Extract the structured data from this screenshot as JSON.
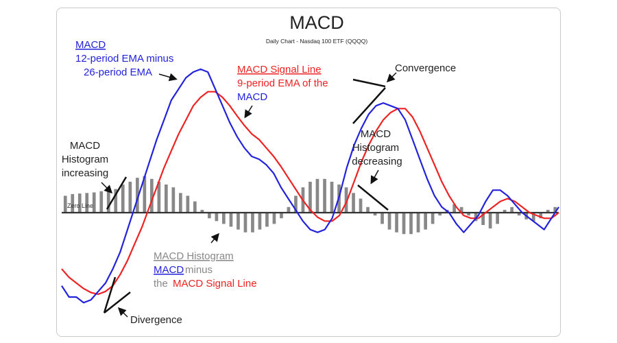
{
  "chart_data": {
    "type": "line",
    "title": "MACD",
    "subtitle": "Daily Chart - Nasdaq 100 ETF (QQQQ)",
    "zero_line_label": "Zero Line",
    "colors": {
      "macd": "#2222dd",
      "signal": "#ee2222",
      "histogram": "#888888",
      "annotation": "#111111"
    },
    "series": [
      {
        "name": "MACD",
        "values": [
          -1.3,
          -1.5,
          -1.5,
          -1.6,
          -1.55,
          -1.4,
          -1.25,
          -1.0,
          -0.7,
          -0.3,
          0.1,
          0.5,
          0.9,
          1.3,
          1.65,
          2.0,
          2.2,
          2.4,
          2.5,
          2.55,
          2.5,
          2.2,
          1.9,
          1.6,
          1.35,
          1.15,
          1.0,
          0.95,
          0.85,
          0.7,
          0.45,
          0.25,
          0.05,
          -0.15,
          -0.3,
          -0.35,
          -0.3,
          -0.1,
          0.3,
          0.8,
          1.2,
          1.5,
          1.75,
          1.9,
          1.95,
          1.9,
          1.85,
          1.65,
          1.3,
          0.95,
          0.6,
          0.3,
          0.1,
          0.0,
          -0.2,
          -0.35,
          -0.2,
          -0.05,
          0.2,
          0.4,
          0.4,
          0.3,
          0.15,
          0.0,
          -0.1,
          -0.2,
          -0.3,
          -0.1,
          0.1
        ]
      },
      {
        "name": "MACD Signal Line",
        "values": [
          -1.0,
          -1.15,
          -1.25,
          -1.35,
          -1.42,
          -1.45,
          -1.4,
          -1.3,
          -1.1,
          -0.85,
          -0.55,
          -0.25,
          0.1,
          0.45,
          0.8,
          1.1,
          1.4,
          1.65,
          1.9,
          2.05,
          2.15,
          2.15,
          2.05,
          1.9,
          1.72,
          1.55,
          1.4,
          1.3,
          1.15,
          1.0,
          0.82,
          0.62,
          0.42,
          0.22,
          0.05,
          -0.08,
          -0.15,
          -0.15,
          -0.05,
          0.2,
          0.55,
          0.9,
          1.2,
          1.45,
          1.65,
          1.78,
          1.85,
          1.85,
          1.7,
          1.45,
          1.15,
          0.85,
          0.55,
          0.3,
          0.1,
          -0.05,
          -0.1,
          -0.1,
          0.0,
          0.1,
          0.2,
          0.25,
          0.2,
          0.1,
          0.0,
          -0.05,
          -0.1,
          -0.1,
          0.0
        ]
      },
      {
        "name": "MACD Histogram",
        "values": [
          0.3,
          0.33,
          0.34,
          0.35,
          0.36,
          0.38,
          0.4,
          0.42,
          0.5,
          0.55,
          0.62,
          0.65,
          0.6,
          0.55,
          0.5,
          0.45,
          0.35,
          0.3,
          0.2,
          0.05,
          -0.1,
          -0.15,
          -0.2,
          -0.25,
          -0.3,
          -0.35,
          -0.35,
          -0.3,
          -0.25,
          -0.2,
          -0.1,
          0.1,
          0.3,
          0.45,
          0.55,
          0.6,
          0.6,
          0.55,
          0.5,
          0.45,
          0.35,
          0.25,
          0.1,
          -0.05,
          -0.2,
          -0.3,
          -0.35,
          -0.38,
          -0.38,
          -0.35,
          -0.3,
          -0.2,
          -0.05,
          0.05,
          0.15,
          0.1,
          -0.05,
          -0.15,
          -0.22,
          -0.28,
          -0.2,
          0.05,
          0.1,
          -0.05,
          -0.12,
          -0.15,
          -0.1,
          0.05,
          0.1
        ]
      }
    ],
    "annotations": {
      "macd_title": "MACD",
      "macd_line1": "12-period EMA minus",
      "macd_line2": "26-period EMA",
      "signal_title": "MACD Signal Line",
      "signal_line1": "9-period EMA of the",
      "signal_line2": "MACD",
      "convergence": "Convergence",
      "hist_dec_1": "MACD",
      "hist_dec_2": "Histogram",
      "hist_dec_3": "decreasing",
      "hist_inc_1": "MACD",
      "hist_inc_2": "Histogram",
      "hist_inc_3": "increasing",
      "hist_title": "MACD Histogram",
      "hist_macd": "MACD",
      "hist_minus": "minus",
      "hist_the": "the",
      "hist_signal": "MACD Signal Line",
      "divergence": "Divergence"
    },
    "grid": false,
    "legend": "none"
  }
}
